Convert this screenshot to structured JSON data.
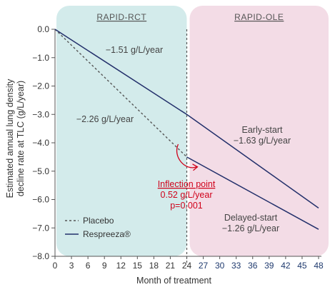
{
  "chart_data": {
    "type": "line",
    "ylabel": "Estimated annual lung density decline rate at TLC (g/L/year)",
    "xlabel": "Month of treatment",
    "ylim": [
      -8.0,
      0.0
    ],
    "xlim": [
      0,
      48
    ],
    "y_ticks": [
      "0.0",
      "−1.0",
      "−2.0",
      "−3.0",
      "−4.0",
      "−5.0",
      "−6.0",
      "−7.0",
      "−8.0"
    ],
    "x_ticks": [
      "0",
      "3",
      "6",
      "9",
      "12",
      "15",
      "18",
      "21",
      "24",
      "27",
      "30",
      "33",
      "36",
      "39",
      "42",
      "45",
      "48"
    ],
    "phases": [
      {
        "label": "RAPID-RCT",
        "x_range": [
          0,
          24
        ],
        "color": "#d3ebeb"
      },
      {
        "label": "RAPID-OLE",
        "x_range": [
          24,
          48
        ],
        "color": "#f3dce6"
      }
    ],
    "series": [
      {
        "name": "Placebo",
        "style": "dashed",
        "color": "#555555",
        "points": [
          [
            0,
            0.0
          ],
          [
            24,
            -4.5
          ]
        ]
      },
      {
        "name": "Respreeza®",
        "style": "solid",
        "color": "#23306b",
        "points": [
          [
            0,
            0.0
          ],
          [
            24,
            -3.0
          ],
          [
            48,
            -6.3
          ]
        ]
      },
      {
        "name": "Delayed-start",
        "style": "solid",
        "color": "#23306b",
        "legend": false,
        "points": [
          [
            24,
            -4.5
          ],
          [
            48,
            -7.05
          ]
        ]
      }
    ],
    "annotations": [
      {
        "lines": [
          "−1.51 g/L/year"
        ],
        "style": "normal"
      },
      {
        "lines": [
          "−2.26 g/L/year"
        ],
        "style": "normal"
      },
      {
        "lines": [
          "Early-start",
          "−1.63 g/L/year"
        ],
        "style": "normal"
      },
      {
        "lines": [
          "Inflection point",
          "0.52 g/L/year",
          "p=0.001"
        ],
        "style": "red"
      },
      {
        "lines": [
          "Delayed-start",
          "−1.26 g/L/year"
        ],
        "style": "normal"
      }
    ],
    "legend_position": "bottom-left"
  }
}
